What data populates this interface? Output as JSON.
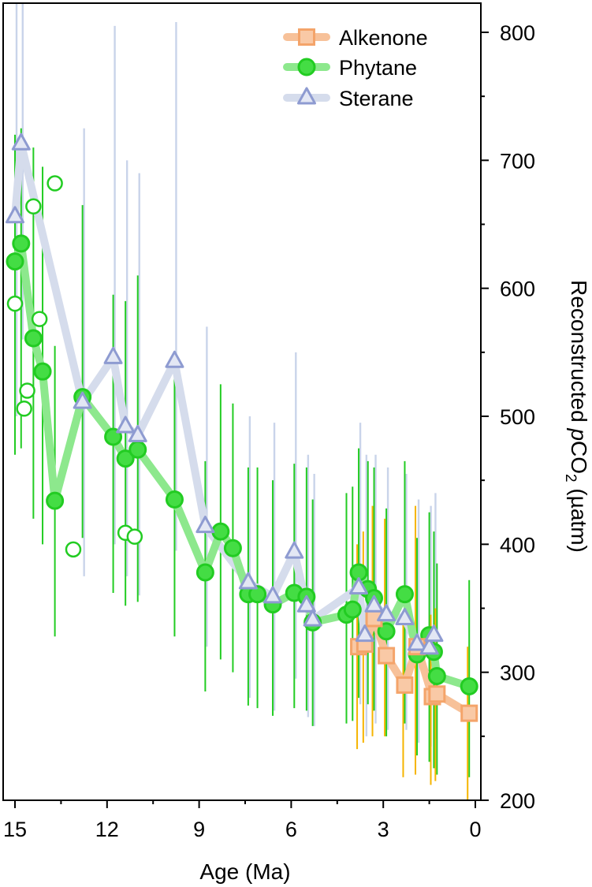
{
  "chart_data": {
    "type": "scatter",
    "xlabel": "Age (Ma)",
    "ylabel_main": "Reconstructed ",
    "ylabel_italic": "p",
    "ylabel_chem": "CO",
    "ylabel_sub": "2",
    "ylabel_unit": " (µatm)",
    "x_reversed": true,
    "xlim": [
      15.3,
      0
    ],
    "ylim": [
      200,
      825
    ],
    "x_ticks": [
      15,
      12,
      9,
      6,
      3,
      0
    ],
    "y_ticks": [
      200,
      300,
      400,
      500,
      600,
      700,
      800
    ],
    "legend_position": "top-right",
    "colors": {
      "Alkenone": "#F4A46A",
      "Alkenone_line": "#F7C199",
      "Alkenone_err": "#F6B400",
      "Phytane": "#22CC22",
      "Phytane_line": "#8DE88D",
      "Phytane_fill": "#44DD44",
      "Phytane_err": "#22CC22",
      "Sterane": "#8E9BD1",
      "Sterane_line": "#D5DCEC",
      "Sterane_err": "#C9D4EA"
    },
    "series": [
      {
        "name": "Alkenone",
        "marker": "square",
        "points": [
          [
            3.8,
            320,
            240,
            400
          ],
          [
            3.6,
            322,
            245,
            410
          ],
          [
            3.3,
            342,
            250,
            430
          ],
          [
            2.9,
            313,
            250,
            420
          ],
          [
            2.3,
            290,
            218,
            345
          ],
          [
            1.9,
            320,
            220,
            430
          ],
          [
            1.4,
            281,
            212,
            345
          ],
          [
            1.25,
            283,
            215,
            350
          ],
          [
            0.2,
            268,
            200,
            320
          ]
        ]
      },
      {
        "name": "Phytane",
        "marker": "circle",
        "points": [
          [
            15.0,
            621,
            470,
            720
          ],
          [
            14.8,
            635,
            475,
            725
          ],
          [
            14.4,
            561,
            420,
            710
          ],
          [
            14.1,
            535,
            400,
            695
          ],
          [
            13.7,
            434,
            328,
            555
          ],
          [
            12.8,
            515,
            405,
            665
          ],
          [
            11.8,
            484,
            362,
            595
          ],
          [
            11.4,
            467,
            352,
            590
          ],
          [
            11.0,
            474,
            355,
            610
          ],
          [
            9.8,
            435,
            328,
            540
          ],
          [
            8.8,
            378,
            285,
            465
          ],
          [
            8.3,
            410,
            310,
            525
          ],
          [
            7.9,
            397,
            300,
            510
          ],
          [
            7.4,
            361,
            274,
            460
          ],
          [
            7.1,
            361,
            272,
            460
          ],
          [
            6.6,
            353,
            266,
            450
          ],
          [
            5.9,
            362,
            272,
            463
          ],
          [
            5.5,
            359,
            270,
            460
          ],
          [
            5.3,
            339,
            258,
            435
          ],
          [
            4.2,
            345,
            260,
            440
          ],
          [
            4.0,
            349,
            262,
            445
          ],
          [
            3.8,
            378,
            280,
            475
          ],
          [
            3.5,
            365,
            275,
            465
          ],
          [
            3.3,
            358,
            270,
            460
          ],
          [
            2.9,
            332,
            250,
            428
          ],
          [
            2.3,
            361,
            260,
            465
          ],
          [
            1.9,
            314,
            235,
            405
          ],
          [
            1.5,
            329,
            230,
            425
          ],
          [
            1.35,
            316,
            225,
            410
          ],
          [
            1.25,
            297,
            220,
            385
          ],
          [
            0.2,
            289,
            218,
            372
          ]
        ],
        "open_points": [
          [
            15.0,
            588
          ],
          [
            14.4,
            664
          ],
          [
            14.2,
            576
          ],
          [
            14.6,
            520
          ],
          [
            14.7,
            506
          ],
          [
            13.7,
            682
          ],
          [
            13.1,
            396
          ],
          [
            11.4,
            409
          ],
          [
            11.1,
            406
          ]
        ]
      },
      {
        "name": "Sterane",
        "marker": "triangle",
        "points": [
          [
            15.0,
            656,
            500,
            825
          ],
          [
            14.8,
            713,
            560,
            825
          ],
          [
            12.8,
            511,
            375,
            725
          ],
          [
            11.8,
            546,
            400,
            805
          ],
          [
            11.4,
            492,
            375,
            700
          ],
          [
            11.0,
            485,
            360,
            690
          ],
          [
            9.8,
            543,
            395,
            808
          ],
          [
            8.8,
            414,
            320,
            570
          ],
          [
            7.4,
            370,
            280,
            500
          ],
          [
            6.6,
            359,
            270,
            495
          ],
          [
            5.9,
            394,
            295,
            550
          ],
          [
            5.5,
            352,
            265,
            470
          ],
          [
            5.3,
            341,
            258,
            455
          ],
          [
            3.8,
            366,
            275,
            495
          ],
          [
            3.6,
            329,
            250,
            470
          ],
          [
            3.3,
            352,
            260,
            470
          ],
          [
            2.9,
            345,
            255,
            460
          ],
          [
            2.3,
            342,
            255,
            455
          ],
          [
            1.9,
            322,
            245,
            435
          ],
          [
            1.5,
            319,
            242,
            430
          ],
          [
            1.35,
            329,
            248,
            440
          ]
        ]
      }
    ]
  }
}
